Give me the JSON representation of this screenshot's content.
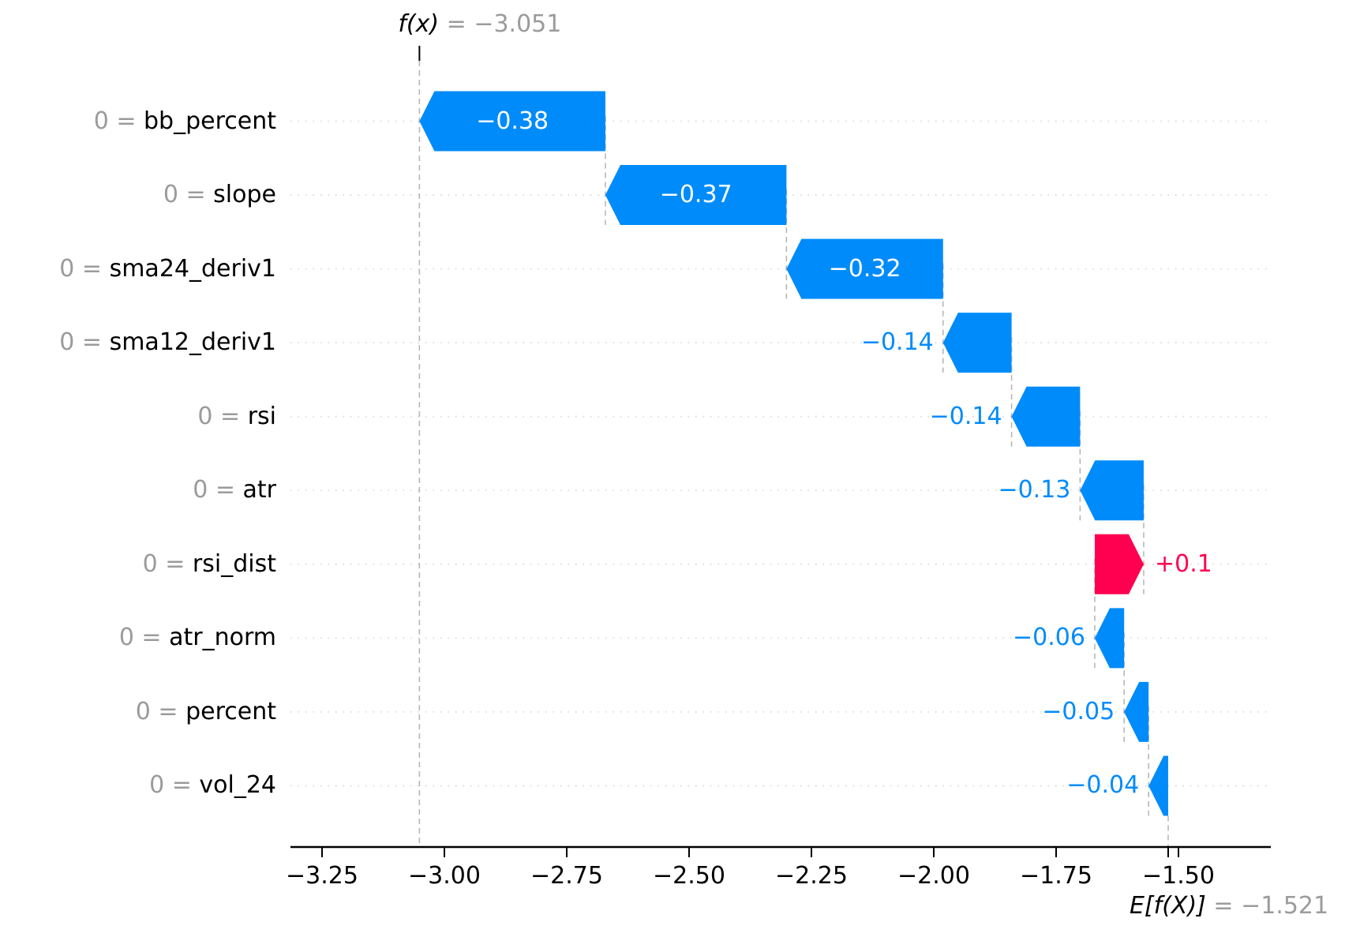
{
  "chart_data": {
    "type": "waterfall",
    "description": "SHAP waterfall plot of feature contributions from E[f(X)] to f(x)",
    "fx": {
      "symbol": "f(x)",
      "eq": " = −3.051",
      "value": -3.051
    },
    "expected_value": {
      "symbol": "E[f(X)]",
      "eq": " = −1.521",
      "value": -1.521
    },
    "features": [
      {
        "label_prefix": "0 = ",
        "name": "bb_percent",
        "contribution": -0.38,
        "display": "−0.38",
        "label_position": "inside"
      },
      {
        "label_prefix": "0 = ",
        "name": "slope",
        "contribution": -0.37,
        "display": "−0.37",
        "label_position": "inside"
      },
      {
        "label_prefix": "0 = ",
        "name": "sma24_deriv1",
        "contribution": -0.32,
        "display": "−0.32",
        "label_position": "inside"
      },
      {
        "label_prefix": "0 = ",
        "name": "sma12_deriv1",
        "contribution": -0.14,
        "display": "−0.14",
        "label_position": "left"
      },
      {
        "label_prefix": "0 = ",
        "name": "rsi",
        "contribution": -0.14,
        "display": "−0.14",
        "label_position": "left"
      },
      {
        "label_prefix": "0 = ",
        "name": "atr",
        "contribution": -0.13,
        "display": "−0.13",
        "label_position": "left"
      },
      {
        "label_prefix": "0 = ",
        "name": "rsi_dist",
        "contribution": 0.1,
        "display": "+0.1",
        "label_position": "right"
      },
      {
        "label_prefix": "0 = ",
        "name": "atr_norm",
        "contribution": -0.06,
        "display": "−0.06",
        "label_position": "left"
      },
      {
        "label_prefix": "0 = ",
        "name": "percent",
        "contribution": -0.05,
        "display": "−0.05",
        "label_position": "left"
      },
      {
        "label_prefix": "0 = ",
        "name": "vol_24",
        "contribution": -0.04,
        "display": "−0.04",
        "label_position": "left"
      }
    ],
    "x_axis": {
      "tick_values": [
        -3.25,
        -3.0,
        -2.75,
        -2.5,
        -2.25,
        -2.0,
        -1.75,
        -1.5
      ],
      "tick_labels": [
        "−3.25",
        "−3.00",
        "−2.75",
        "−2.50",
        "−2.25",
        "−2.00",
        "−1.75",
        "−1.50"
      ],
      "xlim": [
        -3.315,
        -1.311
      ],
      "grid": "dotted horizontal row lines"
    },
    "colors": {
      "negative": "#008bfb",
      "positive": "#ff0051",
      "muted_text": "#9b9b9b",
      "dash_line": "#b3b3b3",
      "dot_line": "#d9d9d9",
      "axis": "#000000",
      "inside_label": "#ffffff",
      "background": "#ffffff"
    }
  }
}
